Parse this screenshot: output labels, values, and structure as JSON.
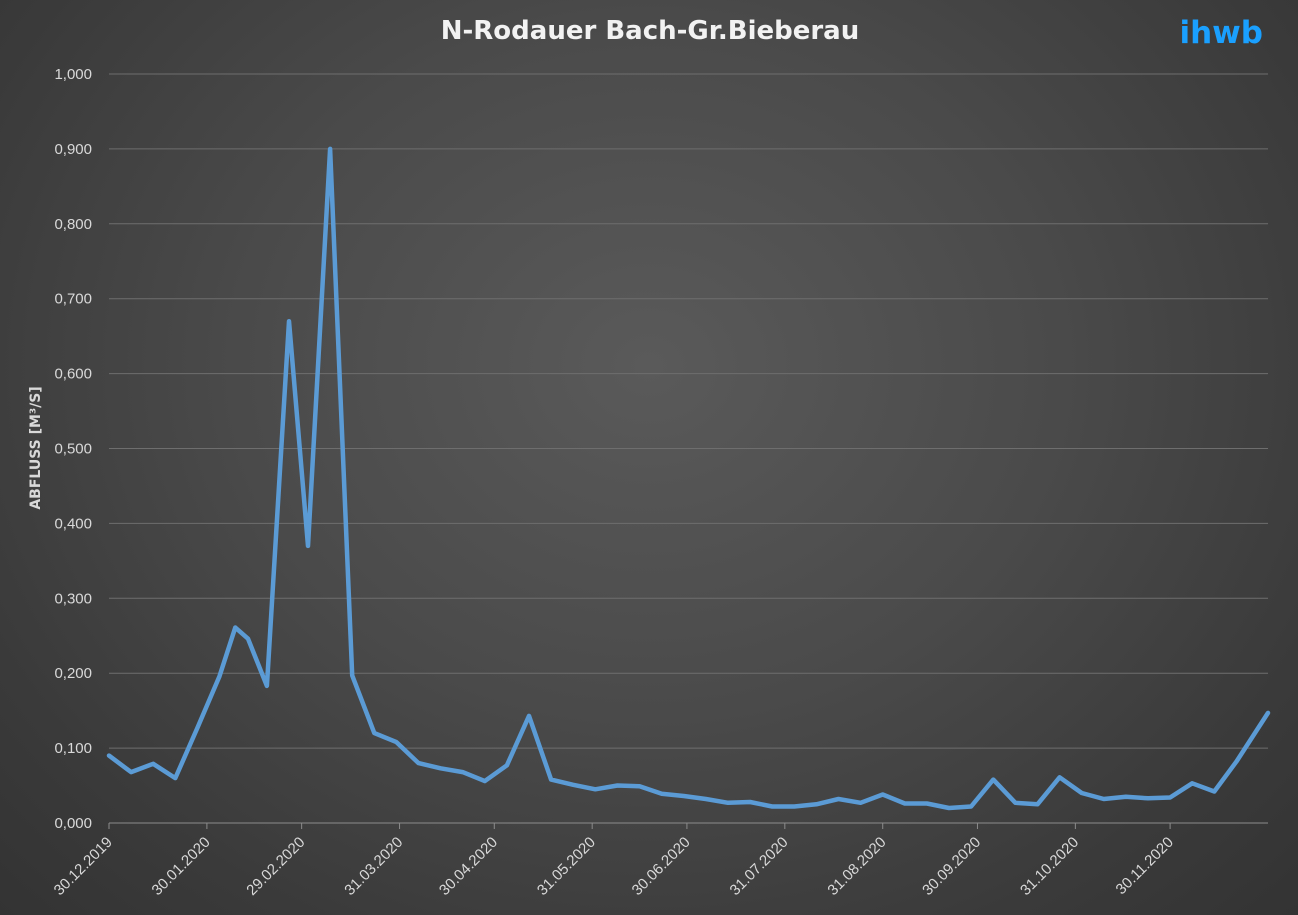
{
  "logo": "ihwb",
  "colors": {
    "series": "#5b9bd5",
    "logo": "#1aa0ff"
  },
  "chart_data": {
    "type": "line",
    "title": "N-Rodauer Bach-Gr.Bieberau",
    "xlabel": "",
    "ylabel": "ABFLUSS [M³/S]",
    "ylim": [
      0,
      1.0
    ],
    "yticks": [
      0,
      0.1,
      0.2,
      0.3,
      0.4,
      0.5,
      0.6,
      0.7,
      0.8,
      0.9,
      1.0
    ],
    "ytick_labels": [
      "0,000",
      "0,100",
      "0,200",
      "0,300",
      "0,400",
      "0,500",
      "0,600",
      "0,700",
      "0,800",
      "0,900",
      "1,000"
    ],
    "xlim": [
      "2019-12-30",
      "2020-12-31"
    ],
    "xticks": [
      "2019-12-30",
      "2020-01-30",
      "2020-02-29",
      "2020-03-31",
      "2020-04-30",
      "2020-05-31",
      "2020-06-30",
      "2020-07-31",
      "2020-08-31",
      "2020-09-30",
      "2020-10-31",
      "2020-11-30"
    ],
    "xtick_labels": [
      "30.12.2019",
      "30.01.2020",
      "29.02.2020",
      "31.03.2020",
      "30.04.2020",
      "31.05.2020",
      "30.06.2020",
      "31.07.2020",
      "31.08.2020",
      "30.09.2020",
      "31.10.2020",
      "30.11.2020"
    ],
    "grid": true,
    "legend": "none",
    "series": [
      {
        "x": [
          "2019-12-30",
          "2020-01-06",
          "2020-01-13",
          "2020-01-20",
          "2020-01-27",
          "2020-02-03",
          "2020-02-08",
          "2020-02-12",
          "2020-02-18",
          "2020-02-25",
          "2020-03-02",
          "2020-03-09",
          "2020-03-16",
          "2020-03-23",
          "2020-03-30",
          "2020-04-06",
          "2020-04-13",
          "2020-04-20",
          "2020-04-27",
          "2020-05-04",
          "2020-05-11",
          "2020-05-18",
          "2020-05-25",
          "2020-06-01",
          "2020-06-08",
          "2020-06-15",
          "2020-06-22",
          "2020-06-29",
          "2020-07-06",
          "2020-07-13",
          "2020-07-20",
          "2020-07-27",
          "2020-08-03",
          "2020-08-10",
          "2020-08-17",
          "2020-08-24",
          "2020-08-31",
          "2020-09-07",
          "2020-09-14",
          "2020-09-21",
          "2020-09-28",
          "2020-10-05",
          "2020-10-12",
          "2020-10-19",
          "2020-10-26",
          "2020-11-02",
          "2020-11-09",
          "2020-11-16",
          "2020-11-23",
          "2020-11-30",
          "2020-12-07",
          "2020-12-14",
          "2020-12-21",
          "2020-12-31"
        ],
        "values": [
          0.09,
          0.068,
          0.079,
          0.06,
          0.127,
          0.196,
          0.261,
          0.246,
          0.183,
          0.67,
          0.37,
          0.9,
          0.197,
          0.12,
          0.108,
          0.08,
          0.073,
          0.068,
          0.056,
          0.077,
          0.143,
          0.058,
          0.051,
          0.045,
          0.05,
          0.049,
          0.039,
          0.036,
          0.032,
          0.027,
          0.028,
          0.022,
          0.022,
          0.025,
          0.032,
          0.027,
          0.038,
          0.026,
          0.026,
          0.02,
          0.022,
          0.058,
          0.027,
          0.025,
          0.061,
          0.04,
          0.032,
          0.035,
          0.033,
          0.034,
          0.053,
          0.042,
          0.082,
          0.147
        ]
      }
    ]
  }
}
